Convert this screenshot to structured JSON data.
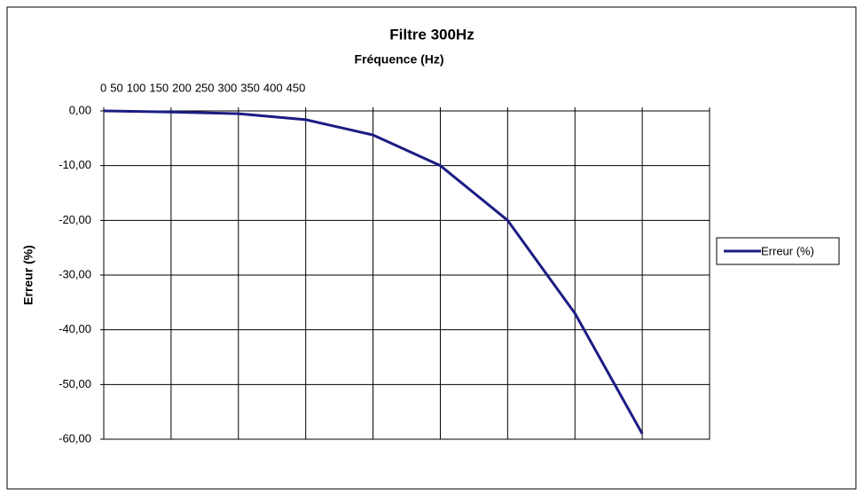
{
  "chart_data": {
    "type": "line",
    "title": "Filtre 300Hz",
    "x_label": "Fréquence (Hz)",
    "y_label": "Erreur (%)",
    "x": [
      0,
      50,
      100,
      150,
      200,
      250,
      300,
      350,
      400
    ],
    "series": [
      {
        "name": "Erreur (%)",
        "color": "#1c1c84",
        "values": [
          0,
          -0.2,
          -0.5,
          -1.6,
          -4.4,
          -10,
          -20,
          -37,
          -59
        ]
      }
    ],
    "xlim": [
      0,
      450
    ],
    "xticks": [
      0,
      50,
      100,
      150,
      200,
      250,
      300,
      350,
      400,
      450
    ],
    "ylim": [
      -60,
      0
    ],
    "yticks": [
      {
        "value": 0,
        "label": "0,00"
      },
      {
        "value": -10,
        "label": "-10,00"
      },
      {
        "value": -20,
        "label": "-20,00"
      },
      {
        "value": -30,
        "label": "-30,00"
      },
      {
        "value": -40,
        "label": "-40,00"
      },
      {
        "value": -50,
        "label": "-50,00"
      },
      {
        "value": -60,
        "label": "-60,00"
      }
    ],
    "grid": true,
    "legend": "right"
  }
}
